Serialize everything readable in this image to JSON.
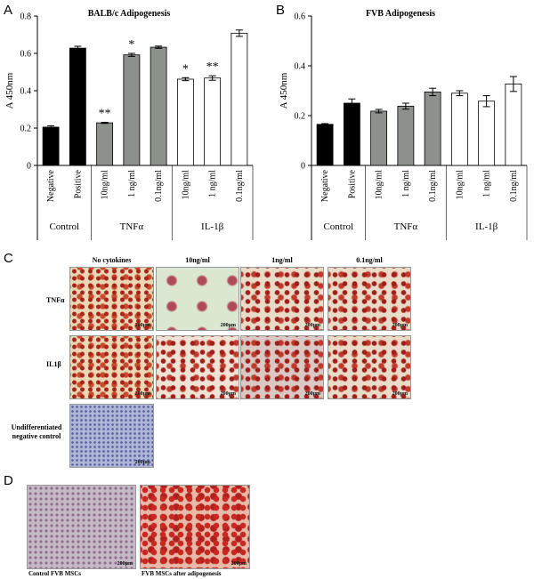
{
  "chart_data": [
    {
      "type": "bar",
      "panel": "A",
      "title": "BALB/c Adipogenesis",
      "y_label": "A 450nm",
      "ylim": [
        0,
        0.8
      ],
      "yticks": [
        0,
        0.2,
        0.4,
        0.6,
        0.8
      ],
      "series": [
        {
          "name": "Control",
          "color": "#000000",
          "categories": [
            "Negative",
            "Positive"
          ],
          "values": [
            0.205,
            0.628
          ],
          "errors": [
            0.007,
            0.01
          ],
          "annotations": [
            null,
            null
          ]
        },
        {
          "name": "TNFα",
          "color": "#8c918c",
          "categories": [
            "10ng/ml",
            "1 ng/ml",
            "0.1ng/ml"
          ],
          "values": [
            0.228,
            0.592,
            0.633
          ],
          "errors": [
            0.003,
            0.008,
            0.006
          ],
          "annotations": [
            "**",
            "*",
            null
          ]
        },
        {
          "name": "IL-1β",
          "color": "#ffffff",
          "categories": [
            "10ng/ml",
            "1 ng/ml",
            "0.1ng/ml"
          ],
          "values": [
            0.462,
            0.468,
            0.708
          ],
          "errors": [
            0.008,
            0.012,
            0.017
          ],
          "annotations": [
            "*",
            "**",
            null
          ]
        }
      ]
    },
    {
      "type": "bar",
      "panel": "B",
      "title": "FVB Adipogenesis",
      "y_label": "A 450nm",
      "ylim": [
        0,
        0.6
      ],
      "yticks": [
        0,
        0.2,
        0.4,
        0.6
      ],
      "series": [
        {
          "name": "Control",
          "color": "#000000",
          "categories": [
            "Negative",
            "Positive"
          ],
          "values": [
            0.165,
            0.25
          ],
          "errors": [
            0.003,
            0.017
          ]
        },
        {
          "name": "TNFα",
          "color": "#8c918c",
          "categories": [
            "10ng/ml",
            "1 ng/ml",
            "0.1ng/ml"
          ],
          "values": [
            0.218,
            0.238,
            0.295
          ],
          "errors": [
            0.007,
            0.012,
            0.015
          ]
        },
        {
          "name": "IL-1β",
          "color": "#ffffff",
          "categories": [
            "10ng/ml",
            "1 ng/ml",
            "0.1ng/ml"
          ],
          "values": [
            0.29,
            0.258,
            0.327
          ],
          "errors": [
            0.01,
            0.022,
            0.03
          ]
        }
      ]
    }
  ],
  "panel_c": {
    "letter": "C",
    "columns": [
      "No cytokines",
      "10ng/ml",
      "1ng/ml",
      "0.1ng/ml"
    ],
    "rows": [
      "TNFα",
      "IL1β",
      "Undifferentiated negative control"
    ],
    "scale_bar": "200μm"
  },
  "panel_d": {
    "letter": "D",
    "captions": [
      "Control FVB MSCs",
      "FVB MSCs after adipogenesis"
    ]
  }
}
